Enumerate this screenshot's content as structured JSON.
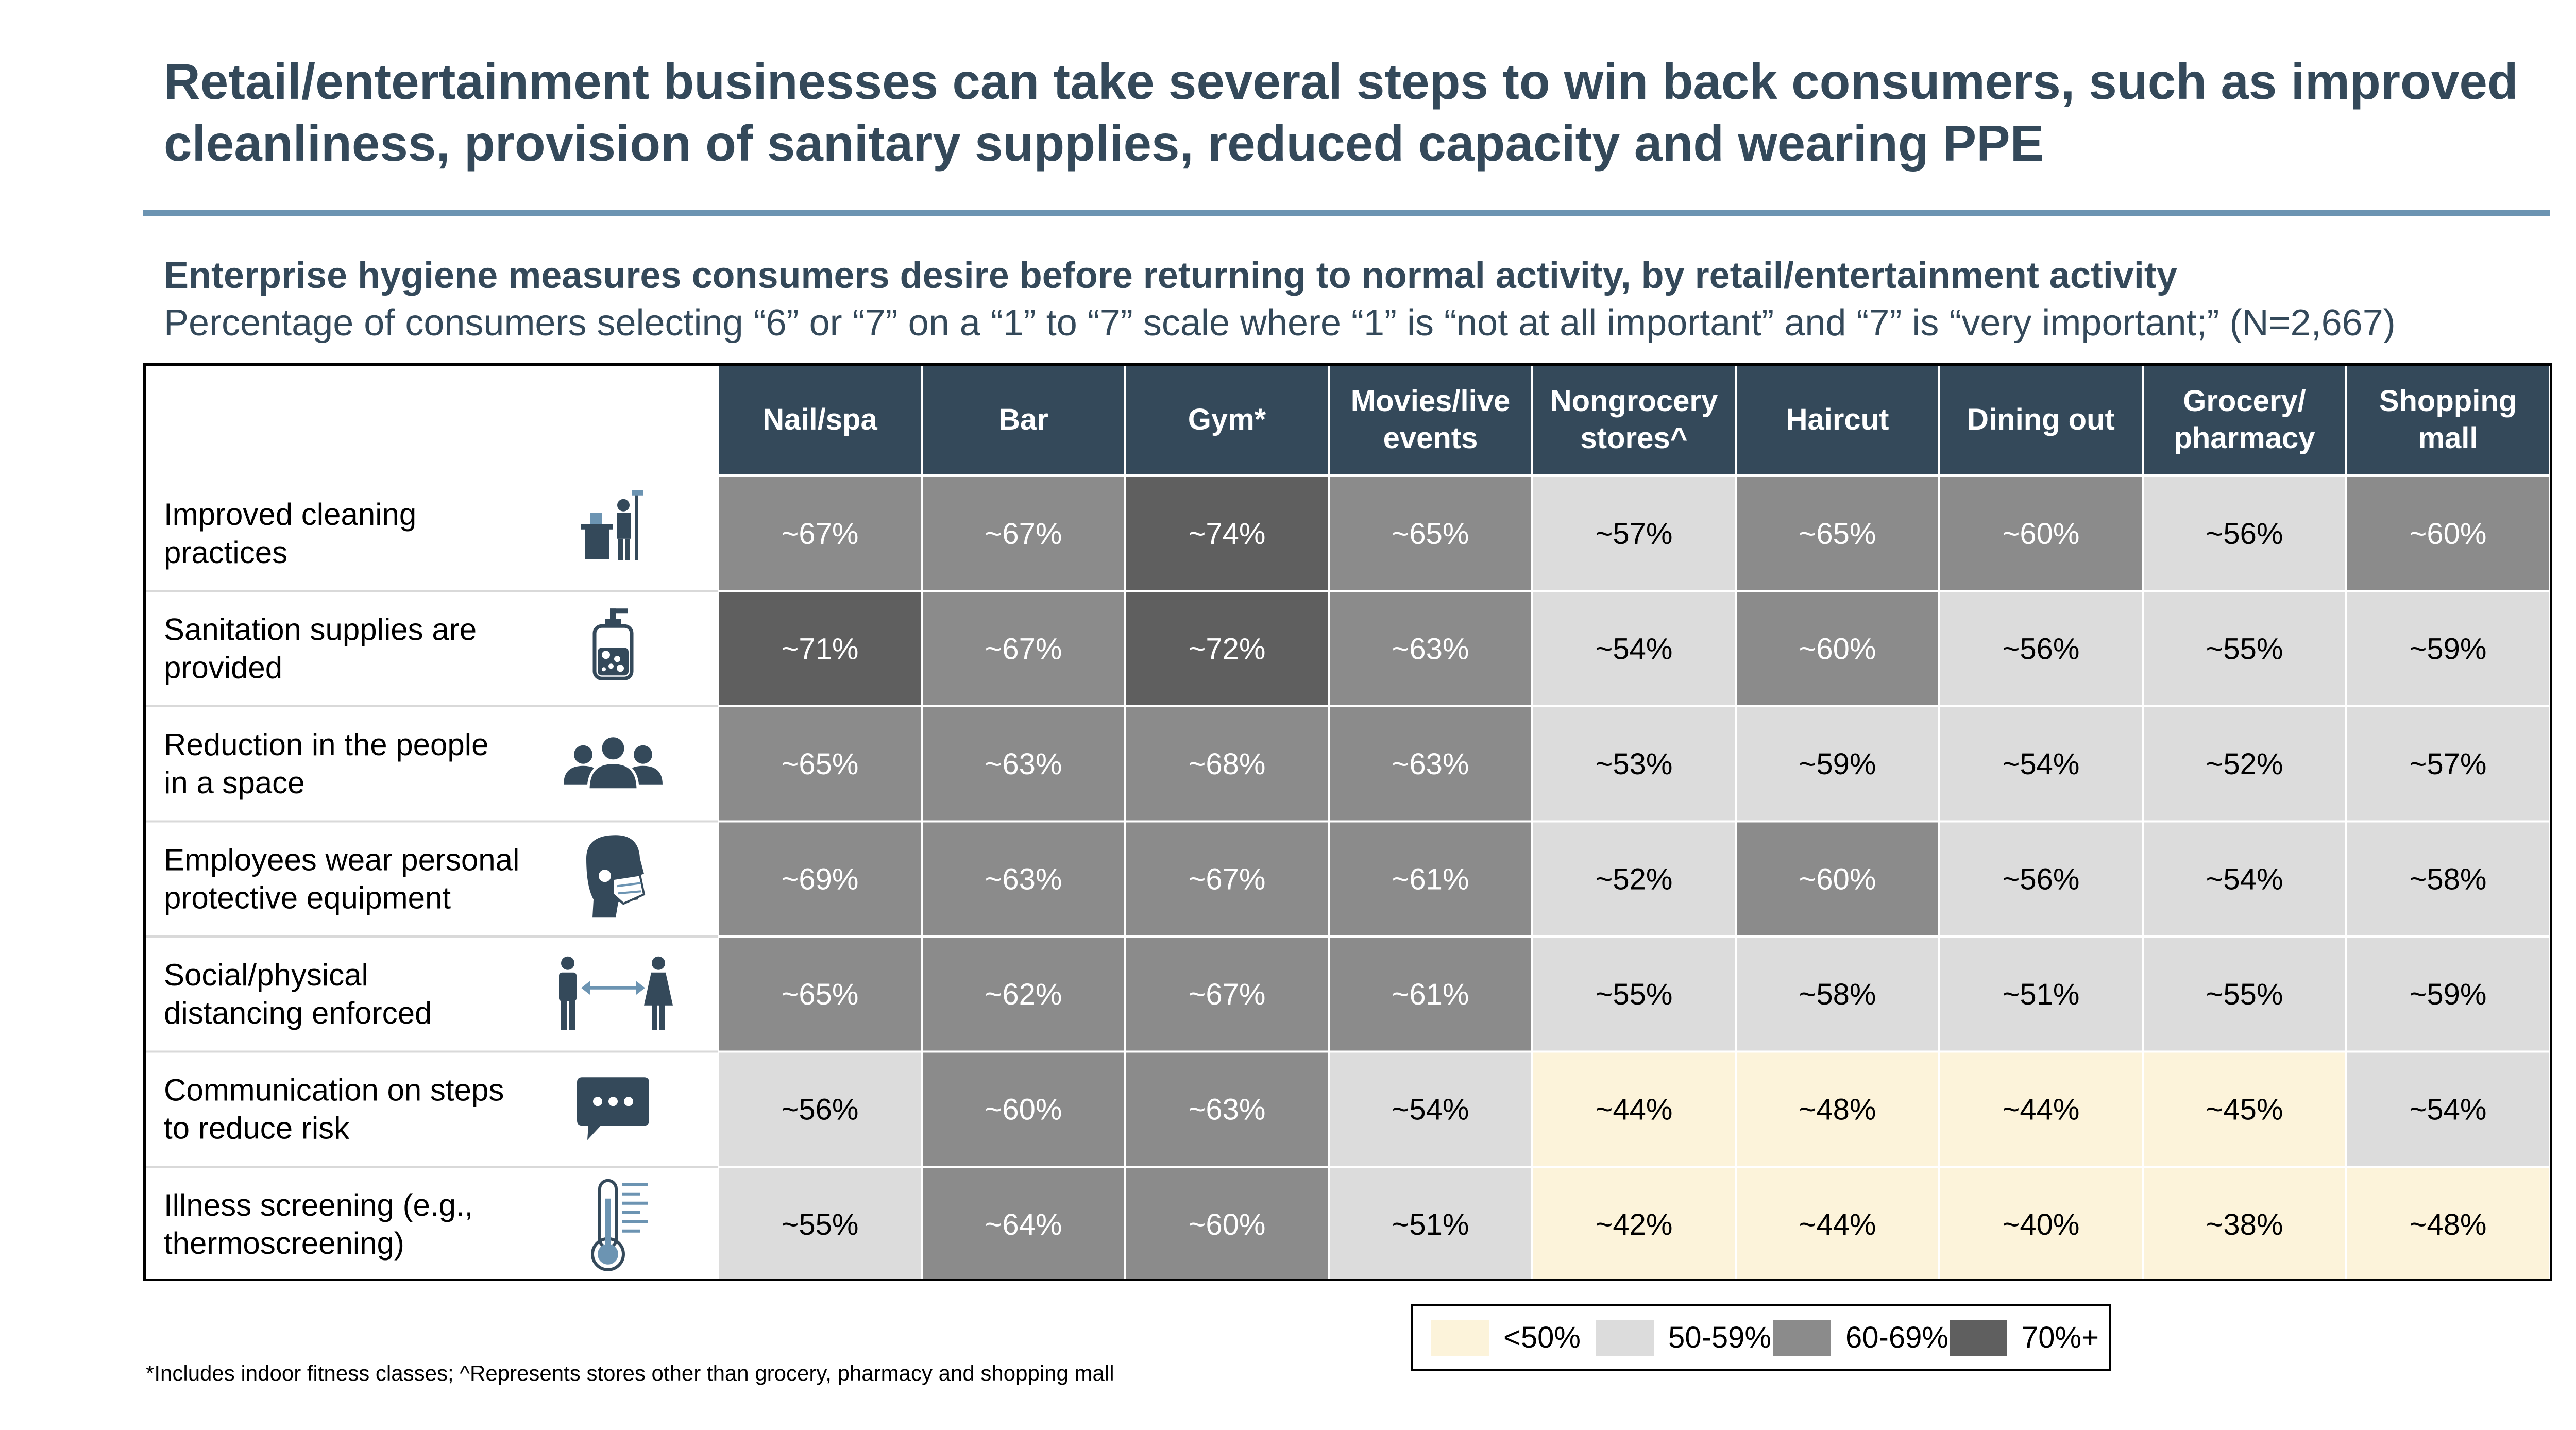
{
  "title": "Retail/entertainment businesses can take several steps to win back consumers, such as improved cleanliness, provision of sanitary supplies, reduced capacity and wearing PPE",
  "subtitle": "Enterprise hygiene measures consumers desire before returning to normal activity, by retail/entertainment activity",
  "subtitle2": "Percentage of consumers selecting “6” or “7” on a “1” to “7” scale where “1” is “not at all important” and “7” is “very important;” (N=2,667)",
  "footnote": "*Includes indoor fitness classes; ^Represents stores other than grocery, pharmacy and shopping mall",
  "colors": {
    "header_bg": "#34495a",
    "lt50": "#fcf3da",
    "50_59": "#dcdcdc",
    "60_69": "#8b8b8b",
    "70plus": "#5f5f5f",
    "icon": "#34495a",
    "accent_icon": "#6c94b2"
  },
  "legend": [
    {
      "label": "<50%",
      "color_key": "lt50"
    },
    {
      "label": "50-59%",
      "color_key": "50_59"
    },
    {
      "label": "60-69%",
      "color_key": "60_69"
    },
    {
      "label": "70%+",
      "color_key": "70plus"
    }
  ],
  "chart_data": {
    "type": "heatmap",
    "categories": [
      "Nail/spa",
      "Bar",
      "Gym*",
      "Movies/live events",
      "Nongrocery stores^",
      "Haircut",
      "Dining out",
      "Grocery/ pharmacy",
      "Shopping mall"
    ],
    "value_prefix": "~",
    "unit": "%",
    "rows": [
      {
        "label": "Improved cleaning practices",
        "icon": "janitor-cart-icon",
        "values": [
          67,
          67,
          74,
          65,
          57,
          65,
          60,
          56,
          60
        ]
      },
      {
        "label": "Sanitation supplies are provided",
        "icon": "soap-dispenser-icon",
        "values": [
          71,
          67,
          72,
          63,
          54,
          60,
          56,
          55,
          59
        ]
      },
      {
        "label": "Reduction in the people in a space",
        "icon": "people-group-icon",
        "values": [
          65,
          63,
          68,
          63,
          53,
          59,
          54,
          52,
          57
        ]
      },
      {
        "label": "Employees wear personal protective equipment",
        "icon": "face-mask-icon",
        "values": [
          69,
          63,
          67,
          61,
          52,
          60,
          56,
          54,
          58
        ]
      },
      {
        "label": "Social/physical distancing enforced",
        "icon": "distancing-icon",
        "values": [
          65,
          62,
          67,
          61,
          55,
          58,
          51,
          55,
          59
        ]
      },
      {
        "label": "Communication on steps to reduce risk",
        "icon": "chat-bubble-icon",
        "values": [
          56,
          60,
          63,
          54,
          44,
          48,
          44,
          45,
          54
        ]
      },
      {
        "label": "Illness screening (e.g., thermoscreening)",
        "icon": "thermometer-icon",
        "values": [
          55,
          64,
          60,
          51,
          42,
          44,
          40,
          38,
          48
        ]
      }
    ]
  }
}
